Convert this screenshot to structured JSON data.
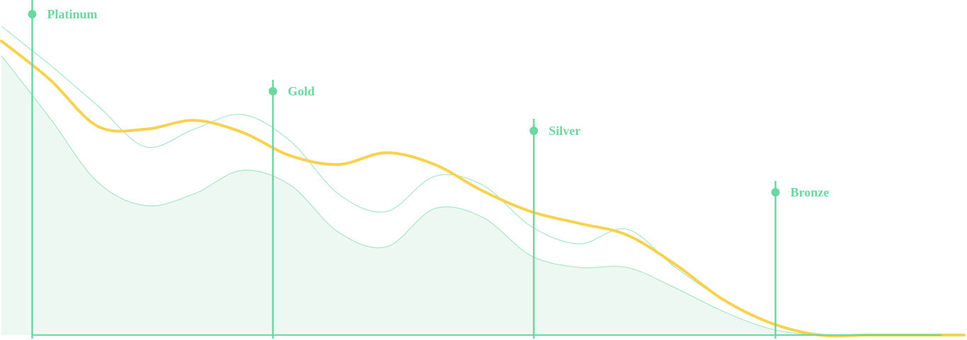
{
  "chart_data": {
    "type": "area",
    "title": "",
    "xlabel": "",
    "ylabel": "",
    "grid": false,
    "legend": "none",
    "x": [
      0,
      5,
      10,
      15,
      20,
      25,
      30,
      35,
      40,
      45,
      50,
      55,
      60,
      65,
      70,
      75,
      80,
      85,
      90,
      95,
      100
    ],
    "series": [
      {
        "style": "filled-area",
        "values": [
          0.95,
          0.74,
          0.52,
          0.44,
          0.48,
          0.56,
          0.51,
          0.35,
          0.3,
          0.43,
          0.4,
          0.27,
          0.23,
          0.23,
          0.16,
          0.08,
          0.02,
          0.0,
          0.0,
          0.0,
          0.0
        ]
      },
      {
        "style": "thin-line",
        "values": [
          1.05,
          0.92,
          0.78,
          0.64,
          0.7,
          0.75,
          0.66,
          0.48,
          0.42,
          0.54,
          0.51,
          0.37,
          0.31,
          0.36,
          0.23,
          0.12,
          0.04,
          0.0,
          0.0,
          0.0,
          0.0
        ]
      },
      {
        "style": "bold-line",
        "values": [
          1.0,
          0.87,
          0.71,
          0.7,
          0.73,
          0.69,
          0.61,
          0.58,
          0.62,
          0.58,
          0.49,
          0.42,
          0.38,
          0.34,
          0.24,
          0.12,
          0.04,
          0.0,
          0.0,
          0.0,
          0.0
        ]
      }
    ],
    "markers": [
      {
        "label": "Platinum",
        "x": 3.2
      },
      {
        "label": "Gold",
        "x": 28.2
      },
      {
        "label": "Silver",
        "x": 55.3
      },
      {
        "label": "Bronze",
        "x": 80.4
      }
    ],
    "colors": {
      "marker": "#6ad8a0",
      "area_fill": "#ecf8f1",
      "area_stroke": "#a8e6c6",
      "thin_line": "#a8e6c6",
      "bold_line": "#f8d24e",
      "label": "#6ad8a0"
    }
  }
}
